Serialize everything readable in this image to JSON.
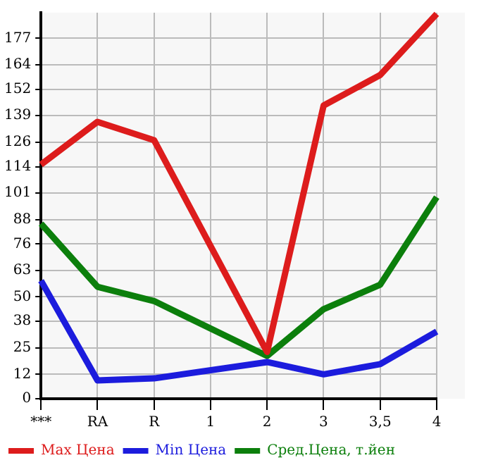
{
  "chart_data": {
    "type": "line",
    "categories": [
      "***",
      "RA",
      "R",
      "1",
      "2",
      "3",
      "3,5",
      "4"
    ],
    "series": [
      {
        "name": "Max Цена",
        "color": "#dd1c1c",
        "values": [
          115,
          136,
          127,
          null,
          23,
          144,
          159,
          189
        ]
      },
      {
        "name": "Min Цена",
        "color": "#1c1cdd",
        "values": [
          58,
          9,
          10,
          null,
          18,
          12,
          17,
          33
        ]
      },
      {
        "name": "Сред.Цена, т.йен",
        "color": "#0c7f0c",
        "values": [
          86,
          55,
          48,
          null,
          21,
          44,
          56,
          99
        ]
      }
    ],
    "ylim": [
      0,
      189.6
    ],
    "yticks": [
      0,
      12,
      25,
      38,
      50,
      63,
      76,
      88,
      101,
      114,
      126,
      139,
      152,
      164,
      177
    ],
    "grid": true,
    "legend": "bottom",
    "marker": "none",
    "line_style": "solid"
  }
}
